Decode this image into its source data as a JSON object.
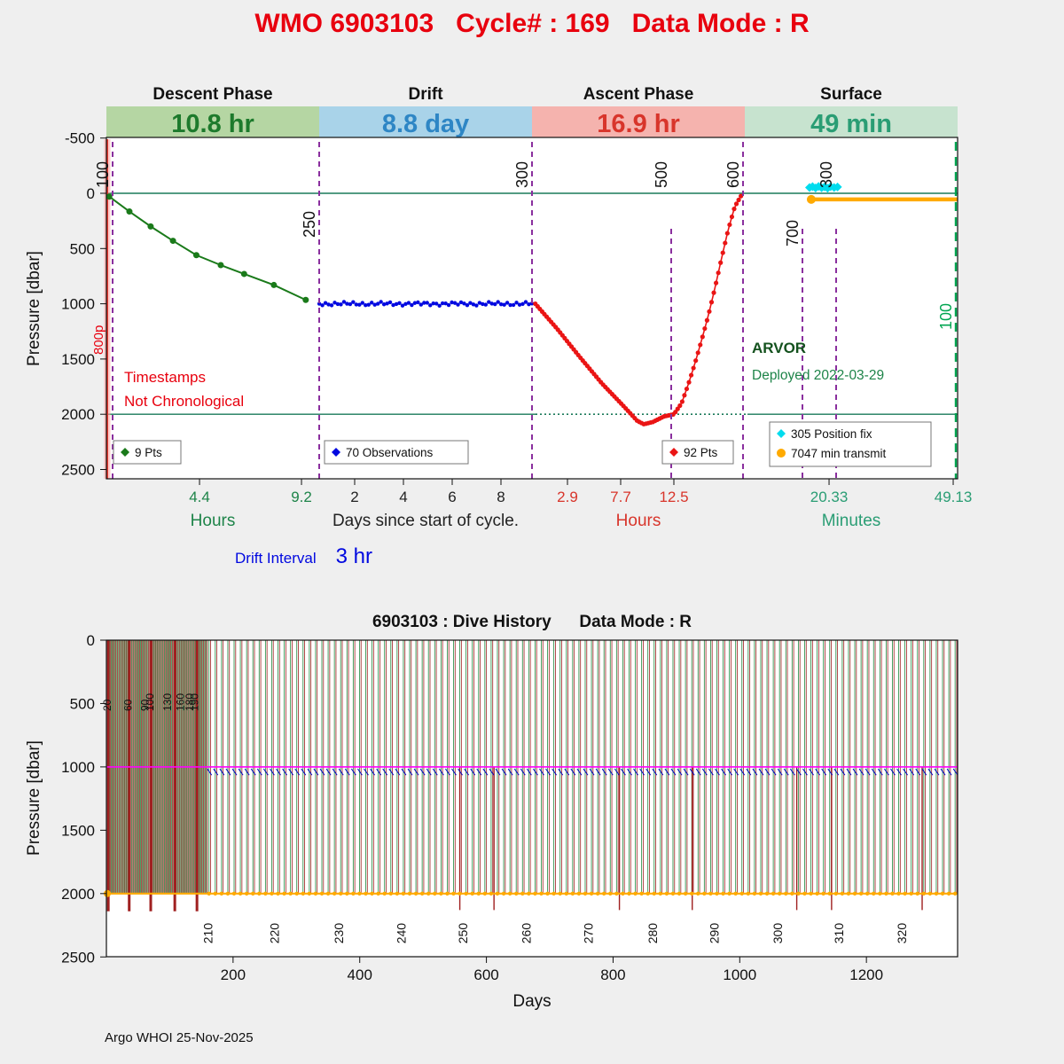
{
  "page": {
    "title": "WMO 6903103   Cycle# : 169   Data Mode : R",
    "footer": "Argo WHOI 25-Nov-2025",
    "drift_interval_label": "Drift Interval",
    "drift_interval_value": "3 hr"
  },
  "chart_data": [
    {
      "id": "cycle-phase-plot",
      "type": "line",
      "ylabel": "Pressure [dbar]",
      "ylim": [
        -500,
        2500
      ],
      "y_ticks": [
        "-500",
        "0",
        "500",
        "1000",
        "1500",
        "2000",
        "2500"
      ],
      "y_tick_values": [
        -500,
        0,
        500,
        1000,
        1500,
        2000,
        2500
      ],
      "pressure_ref_lines": [
        0,
        2000
      ],
      "phases": [
        {
          "name": "Descent Phase",
          "duration": "10.8 hr",
          "band_color": "#b5d6a3",
          "text_color": "#1d7a2c",
          "axis_label": "Hours",
          "axis_color": "#1e8449",
          "ticks": [
            "4.4",
            "9.2"
          ],
          "tick_values": [
            4.4,
            9.2
          ]
        },
        {
          "name": "Drift",
          "duration": "8.8 day",
          "band_color": "#a9d3e9",
          "text_color": "#2e86c5",
          "axis_label": "Days since start of cycle.",
          "axis_color": "#222222",
          "ticks": [
            "2",
            "4",
            "6",
            "8"
          ],
          "tick_values": [
            2,
            4,
            6,
            8
          ]
        },
        {
          "name": "Ascent Phase",
          "duration": "16.9 hr",
          "band_color": "#f5b3ae",
          "text_color": "#d8352b",
          "axis_label": "Hours",
          "axis_color": "#d8352b",
          "ticks": [
            "2.9",
            "7.7",
            "12.5"
          ],
          "tick_values": [
            2.9,
            7.7,
            12.5
          ]
        },
        {
          "name": "Surface",
          "duration": "49 min",
          "band_color": "#c7e3cf",
          "text_color": "#2a9d74",
          "axis_label": "Minutes",
          "axis_color": "#2a9d74",
          "ticks": [
            "20.33",
            "49.13"
          ],
          "tick_values": [
            20.33,
            49.13
          ]
        }
      ],
      "series": [
        {
          "name": "9 Pts",
          "phase": 0,
          "color": "#1a7a1a",
          "marker": "circle",
          "points": [
            [
              0.15,
              30
            ],
            [
              1.1,
              165
            ],
            [
              2.1,
              300
            ],
            [
              3.15,
              430
            ],
            [
              4.25,
              560
            ],
            [
              5.4,
              650
            ],
            [
              6.5,
              730
            ],
            [
              7.9,
              830
            ],
            [
              9.4,
              965
            ]
          ]
        },
        {
          "name": "70 Observations",
          "phase": 1,
          "color": "#0008e0",
          "marker": "dot",
          "n": 70,
          "x_start": 0.55,
          "x_end": 9.27,
          "base_pressure": 1000,
          "jitter": 13
        },
        {
          "name": "92 Pts",
          "phase": 2,
          "color": "#ea1515",
          "marker": "dot",
          "n": 92,
          "keypoints": [
            [
              0,
              1000
            ],
            [
              2,
              1230
            ],
            [
              4,
              1480
            ],
            [
              6,
              1720
            ],
            [
              8,
              1930
            ],
            [
              9.2,
              2060
            ],
            [
              9.8,
              2090
            ],
            [
              10.6,
              2070
            ],
            [
              11.6,
              2020
            ],
            [
              12.5,
              2000
            ],
            [
              13.2,
              1900
            ],
            [
              13.8,
              1730
            ],
            [
              14.4,
              1540
            ],
            [
              15,
              1330
            ],
            [
              15.6,
              1110
            ],
            [
              16.2,
              860
            ],
            [
              16.8,
              590
            ],
            [
              17.4,
              330
            ],
            [
              18,
              120
            ],
            [
              18.55,
              25
            ]
          ]
        },
        {
          "name": "305 Position fix",
          "phase": 3,
          "color": "#00dcee",
          "marker": "diamond",
          "points": [
            [
              15.8,
              -52
            ],
            [
              16.5,
              -60
            ],
            [
              17.2,
              -48
            ],
            [
              17.9,
              -62
            ],
            [
              18.6,
              -50
            ],
            [
              19.3,
              -58
            ],
            [
              20.0,
              -46
            ],
            [
              20.7,
              -60
            ],
            [
              21.5,
              -52
            ],
            [
              22.3,
              -57
            ]
          ]
        },
        {
          "name": "7047 min transmit",
          "phase": 3,
          "color": "#ffaa00",
          "marker": "circle-line",
          "points": [
            [
              16.2,
              55
            ],
            [
              50.1,
              55
            ]
          ]
        }
      ],
      "legends": [
        {
          "items": [
            {
              "marker": "diamond",
              "color": "#1a7a1a",
              "label": "9 Pts"
            }
          ]
        },
        {
          "items": [
            {
              "marker": "diamond",
              "color": "#0008e0",
              "label": "70 Observations"
            }
          ]
        },
        {
          "items": [
            {
              "marker": "diamond",
              "color": "#ea1515",
              "label": "92 Pts"
            }
          ]
        },
        {
          "items": [
            {
              "marker": "diamond",
              "color": "#00dcee",
              "label": "305 Position fix"
            },
            {
              "marker": "circle",
              "color": "#ffaa00",
              "label": "7047 min transmit"
            }
          ]
        }
      ],
      "vline_labels": [
        {
          "label": "100",
          "color": "#111111"
        },
        {
          "label": "250",
          "color": "#111111"
        },
        {
          "label": "300",
          "color": "#111111"
        },
        {
          "label": "500",
          "color": "#111111"
        },
        {
          "label": "600",
          "color": "#111111"
        },
        {
          "label": "700",
          "color": "#111111"
        },
        {
          "label": "300",
          "color": "#111111"
        },
        {
          "label": "100",
          "color": "#00a550"
        }
      ],
      "annotations": {
        "timestamps_line1": "Timestamps",
        "timestamps_line2": "Not Chronological",
        "left_marker": "800p",
        "float_model": "ARVOR",
        "deployed": "Deployed 2022-03-29"
      }
    },
    {
      "id": "dive-history",
      "type": "line",
      "title": "6903103 : Dive History      Data Mode : R",
      "xlabel": "Days",
      "ylabel": "Pressure [dbar]",
      "xlim": [
        0,
        1344
      ],
      "ylim": [
        0,
        2500
      ],
      "x_ticks": [
        "200",
        "400",
        "600",
        "800",
        "1000",
        "1200"
      ],
      "x_tick_values": [
        200,
        400,
        600,
        800,
        1000,
        1200
      ],
      "y_ticks": [
        "0",
        "500",
        "1000",
        "1500",
        "2000",
        "2500"
      ],
      "y_tick_values": [
        0,
        500,
        1000,
        1500,
        2000,
        2500
      ],
      "drift_line": {
        "pressure": 1000,
        "color": "#ff00ff"
      },
      "bottom_line": {
        "pressure": 2000,
        "color": "#ffaa00"
      },
      "early_cycles": {
        "n": 55,
        "day_first": 2,
        "day_last": 158
      },
      "main_cycles": {
        "n": 120,
        "day_first": 162,
        "day_last": 1340
      },
      "descent_color": "#1f8a3f",
      "ascent_color": "#a02020",
      "deep_spike_days": [
        558,
        612,
        810,
        925,
        1090,
        1145,
        1288
      ],
      "early_spike_days": [
        3,
        36,
        70,
        108,
        143
      ],
      "cycle_labels": [
        {
          "label": "210",
          "day": 162
        },
        {
          "label": "220",
          "day": 267
        },
        {
          "label": "230",
          "day": 368
        },
        {
          "label": "240",
          "day": 467
        },
        {
          "label": "250",
          "day": 564
        },
        {
          "label": "260",
          "day": 664
        },
        {
          "label": "270",
          "day": 762
        },
        {
          "label": "280",
          "day": 864
        },
        {
          "label": "290",
          "day": 961
        },
        {
          "label": "300",
          "day": 1061
        },
        {
          "label": "310",
          "day": 1158
        },
        {
          "label": "320",
          "day": 1257
        }
      ],
      "early_cycle_labels": [
        {
          "label": "20",
          "day": 3
        },
        {
          "label": "60",
          "day": 36
        },
        {
          "label": "90",
          "day": 62
        },
        {
          "label": "100",
          "day": 70
        },
        {
          "label": "130",
          "day": 98
        },
        {
          "label": "160",
          "day": 118
        },
        {
          "label": "180",
          "day": 133
        },
        {
          "label": "190",
          "day": 141
        }
      ]
    }
  ]
}
